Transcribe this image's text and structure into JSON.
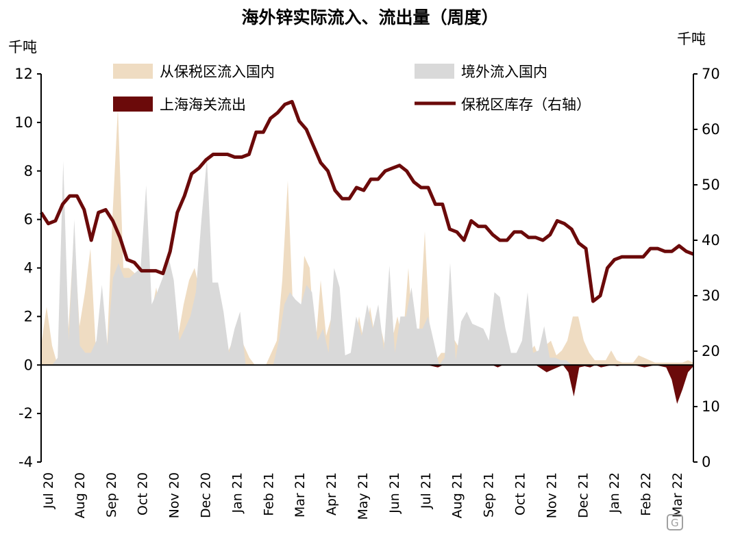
{
  "chart_data": {
    "type": "area",
    "title": "海外锌实际流入、流出量（周度）",
    "left_unit": "千吨",
    "right_unit": "千吨",
    "ylim_left": [
      -4,
      12
    ],
    "yticks_left": [
      -4,
      -2,
      0,
      2,
      4,
      6,
      8,
      10,
      12
    ],
    "ylim_right": [
      0,
      70
    ],
    "yticks_right": [
      0,
      10,
      20,
      30,
      40,
      50,
      60,
      70
    ],
    "grid": false,
    "legend_position": "top",
    "x_tick_labels": [
      "Jul 20",
      "Aug 20",
      "Sep 20",
      "Oct 20",
      "Nov 20",
      "Dec 20",
      "Jan 21",
      "Feb 21",
      "Mar 21",
      "Apr 21",
      "May 21",
      "Jun 21",
      "Jul 21",
      "Aug 21",
      "Sep 21",
      "Oct 21",
      "Nov 21",
      "Dec 21",
      "Jan 22",
      "Feb 22",
      "Mar 22"
    ],
    "series": [
      {
        "name": "从保税区流入国内",
        "kind": "area",
        "axis": "left",
        "color": "#EFDCC2",
        "values": [
          0.8,
          2.4,
          0.8,
          0,
          6.5,
          1.5,
          5.5,
          1.6,
          3.0,
          4.8,
          0.6,
          2.8,
          0.5,
          6.0,
          10.6,
          4.0,
          4.0,
          3.8,
          3.5,
          2.8,
          2.0,
          3.2,
          1.8,
          1.5,
          1.5,
          1.2,
          2.5,
          3.5,
          4.0,
          3.0,
          2.0,
          1.5,
          1.5,
          1.2,
          0.5,
          1.0,
          1.5,
          0.8,
          0.3,
          0,
          0,
          0,
          0.5,
          1.0,
          3.5,
          7.6,
          2.0,
          0.8,
          4.5,
          4.0,
          0.6,
          3.5,
          1.2,
          2.0,
          1.0,
          0.3,
          0.3,
          0.5,
          2.0,
          0.8,
          2.4,
          1.0,
          1.5,
          0.5,
          1.0,
          2.0,
          1.0,
          4.0,
          0.6,
          1.5,
          5.5,
          1.0,
          0.2,
          0.5,
          0.5,
          1.2,
          0.8,
          1.0,
          0.8,
          0.8,
          0.6,
          0.5,
          0.5,
          1.0,
          0.5,
          0.5,
          0.3,
          0.5,
          0.2,
          0.5,
          0.8,
          0.2,
          0.8,
          1.0,
          0.4,
          0.6,
          1.0,
          2.0,
          2.0,
          1.0,
          0.5,
          0.2,
          0.2,
          0.2,
          0.6,
          0.2,
          0.1,
          0.1,
          0.1,
          0.4,
          0.3,
          0.2,
          0.1,
          0.1,
          0.1,
          0.1,
          0.1,
          0.1,
          0.2,
          0.1
        ]
      },
      {
        "name": "境外流入国内",
        "kind": "area",
        "axis": "left",
        "color": "#D9D9D9",
        "values": [
          0,
          0,
          0,
          0.3,
          8.4,
          1.0,
          6.0,
          0.8,
          0.5,
          0.5,
          1.0,
          3.3,
          0.8,
          3.6,
          4.2,
          3.6,
          3.6,
          3.8,
          4.0,
          7.4,
          2.5,
          3.0,
          3.6,
          4.5,
          3.5,
          1.0,
          1.5,
          2.0,
          3.0,
          6.0,
          8.5,
          3.4,
          3.4,
          2.2,
          0.5,
          1.5,
          2.2,
          0,
          0,
          0,
          0,
          0,
          0,
          1.0,
          2.5,
          3.0,
          2.7,
          2.5,
          3.3,
          3.0,
          1.0,
          1.5,
          0.5,
          4.0,
          3.2,
          0.4,
          0.5,
          2.0,
          1.2,
          2.5,
          1.5,
          2.5,
          0.6,
          4.1,
          0.5,
          2.0,
          2.0,
          3.2,
          1.5,
          1.5,
          2.0,
          1.0,
          0,
          0.3,
          4.2,
          0.2,
          1.8,
          2.2,
          1.7,
          1.6,
          1.5,
          1.0,
          3.0,
          2.8,
          1.5,
          0.5,
          0.5,
          1.0,
          3.0,
          0.5,
          0.6,
          1.6,
          0.3,
          0.3,
          0.2,
          0.2,
          0,
          0,
          0,
          0,
          0,
          0,
          0,
          0,
          0,
          0,
          0,
          0,
          0,
          0,
          0,
          0,
          0,
          0,
          0,
          0,
          0,
          0,
          0
        ]
      },
      {
        "name": "上海海关流出",
        "kind": "area",
        "axis": "left",
        "color": "#6B0A0A",
        "values": [
          0,
          0,
          0,
          0,
          0,
          0,
          0,
          0,
          0,
          0,
          0,
          0,
          0,
          0,
          0,
          0,
          0,
          0,
          0,
          0,
          0,
          0,
          0,
          0,
          0,
          0,
          0,
          0,
          0,
          0,
          0,
          0,
          0,
          0,
          0,
          0,
          0,
          0,
          0,
          0,
          0,
          0,
          0,
          0,
          0,
          0,
          0,
          0,
          0,
          0,
          0,
          0,
          0,
          0,
          0,
          0,
          0,
          0,
          0,
          0,
          0,
          0,
          0,
          0,
          0,
          0,
          0,
          0,
          0,
          0,
          0,
          0,
          -0.05,
          -0.1,
          0,
          0,
          0,
          0,
          0,
          0,
          0,
          0,
          0,
          0,
          -0.1,
          0,
          0,
          0,
          0,
          0,
          0,
          0,
          -0.15,
          -0.3,
          -0.2,
          -0.1,
          0,
          -0.3,
          -1.3,
          -0.1,
          -0.05,
          -0.1,
          0,
          -0.1,
          -0.05,
          0,
          -0.05,
          0,
          0,
          0,
          -0.05,
          -0.1,
          -0.05,
          0,
          -0.05,
          -0.1,
          -0.6,
          -1.6,
          -1.0,
          -0.3,
          -0.05
        ]
      },
      {
        "name": "保税区库存（右轴）",
        "kind": "line",
        "axis": "right",
        "color": "#6B0A0A",
        "values": [
          45.0,
          43.0,
          43.5,
          46.5,
          48.0,
          48.0,
          45.5,
          40.0,
          45.0,
          45.5,
          43.5,
          40.5,
          36.5,
          36.0,
          34.5,
          34.5,
          34.5,
          34.0,
          38.0,
          45.0,
          48.0,
          52.0,
          53.0,
          54.5,
          55.5,
          55.5,
          55.5,
          55.0,
          55.0,
          55.5,
          59.5,
          59.5,
          62.0,
          63.0,
          64.5,
          65.0,
          61.5,
          60.0,
          57.0,
          54.0,
          52.5,
          49.0,
          47.5,
          47.5,
          49.5,
          49.0,
          51.0,
          51.0,
          52.5,
          53.0,
          53.5,
          52.5,
          50.5,
          49.5,
          49.5,
          46.5,
          46.5,
          42.0,
          41.5,
          40.0,
          43.5,
          42.5,
          42.5,
          41.0,
          40.0,
          40.0,
          41.5,
          41.5,
          40.5,
          40.5,
          40.0,
          41.0,
          43.5,
          43.0,
          42.0,
          39.5,
          38.5,
          29.0,
          30.0,
          35.0,
          36.5,
          37.0,
          37.0,
          37.0,
          37.0,
          38.5,
          38.5,
          38.0,
          38.0,
          39.0,
          38.0,
          37.5
        ]
      }
    ]
  }
}
